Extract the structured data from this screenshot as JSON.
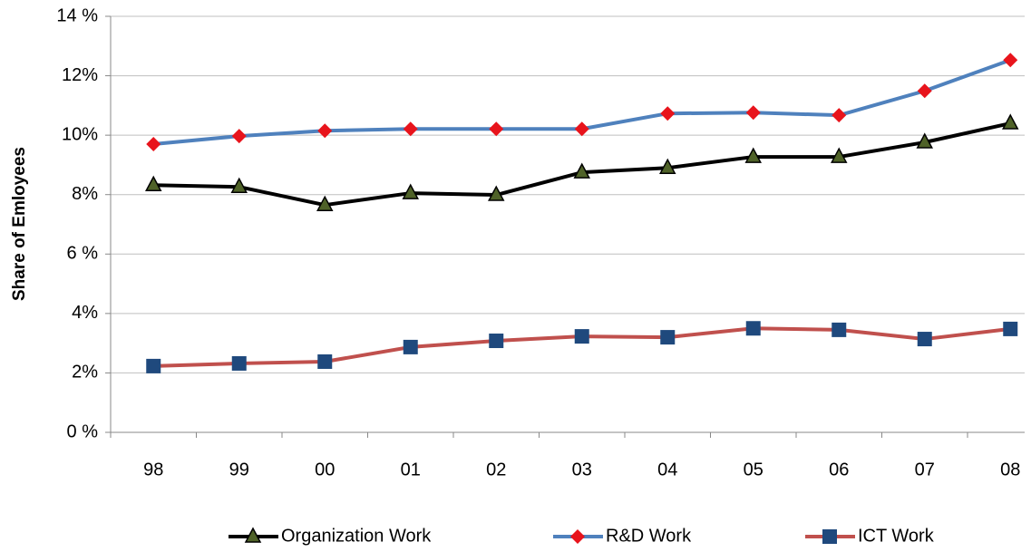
{
  "chart_data": {
    "type": "line",
    "y_label": "Share of Emloyees",
    "categories": [
      "98",
      "99",
      "00",
      "01",
      "02",
      "03",
      "04",
      "05",
      "06",
      "07",
      "08"
    ],
    "series": [
      {
        "name": "Organization Work",
        "color": "#000000",
        "marker": "triangle",
        "marker_color": "#4f6228",
        "values": [
          8.32,
          8.26,
          7.65,
          8.05,
          7.99,
          8.75,
          8.9,
          9.27,
          9.27,
          9.76,
          10.4
        ]
      },
      {
        "name": "R&D Work",
        "color": "#4f81bd",
        "marker": "diamond",
        "marker_color": "#e8141c",
        "values": [
          9.7,
          9.97,
          10.15,
          10.21,
          10.21,
          10.21,
          10.73,
          10.76,
          10.67,
          11.49,
          12.53
        ]
      },
      {
        "name": "ICT Work",
        "color": "#c0504d",
        "marker": "square",
        "marker_color": "#1f497d",
        "values": [
          2.23,
          2.32,
          2.38,
          2.87,
          3.08,
          3.23,
          3.2,
          3.5,
          3.45,
          3.14,
          3.48
        ]
      }
    ],
    "ylim": [
      0,
      14
    ],
    "yticks": [
      {
        "value": 0,
        "label": "0 %"
      },
      {
        "value": 2,
        "label": "2%"
      },
      {
        "value": 4,
        "label": "4%"
      },
      {
        "value": 6,
        "label": "6 %"
      },
      {
        "value": 8,
        "label": "8%"
      },
      {
        "value": 10,
        "label": "10%"
      },
      {
        "value": 12,
        "label": "12%"
      },
      {
        "value": 14,
        "label": "14 %"
      }
    ],
    "grid": true,
    "legend": "bottom"
  }
}
